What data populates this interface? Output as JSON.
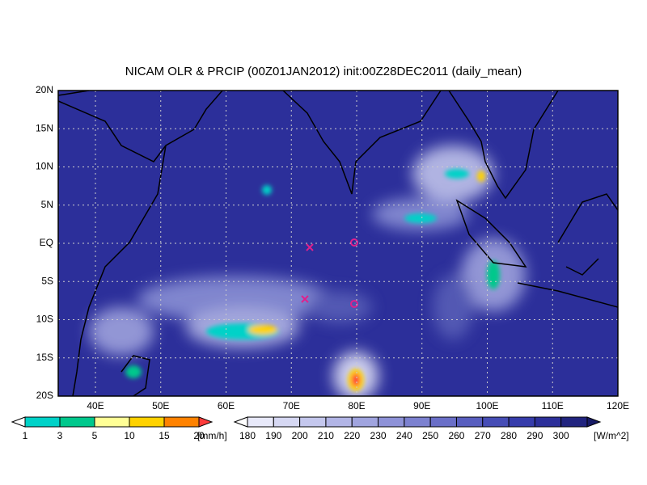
{
  "title": "NICAM OLR & PRCIP (00Z01JAN2012) init:00Z28DEC2011 (daily_mean)",
  "lat_labels": [
    "20N",
    "15N",
    "10N",
    "5N",
    "EQ",
    "5S",
    "10S",
    "15S",
    "20S"
  ],
  "lon_labels": [
    "40E",
    "50E",
    "60E",
    "70E",
    "80E",
    "90E",
    "100E",
    "110E",
    "120E"
  ],
  "precip_legend": {
    "labels": [
      "1",
      "3",
      "5",
      "10",
      "15",
      "20"
    ],
    "unit": "[mm/h]"
  },
  "olr_legend": {
    "labels": [
      "180",
      "190",
      "200",
      "210",
      "220",
      "230",
      "240",
      "250",
      "260",
      "270",
      "280",
      "290",
      "300"
    ],
    "unit": "[W/m^2]"
  }
}
